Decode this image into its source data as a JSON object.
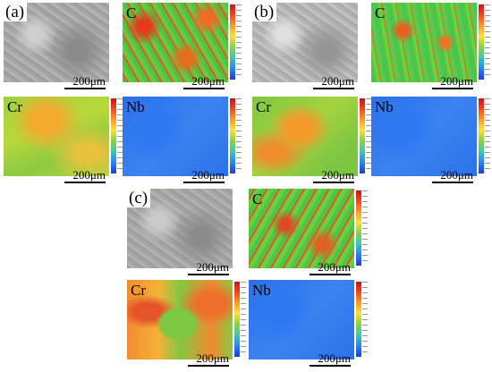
{
  "panels": {
    "a_label": "(a)",
    "b_label": "(b)",
    "c_label": "(c)",
    "elements": {
      "c": "C",
      "cr": "Cr",
      "nb": "Nb"
    },
    "scale": "200μm"
  },
  "colors": {
    "background": "#ffffff",
    "high": "#c0161b",
    "mid": "#8ed046",
    "low": "#1d3bd6"
  }
}
